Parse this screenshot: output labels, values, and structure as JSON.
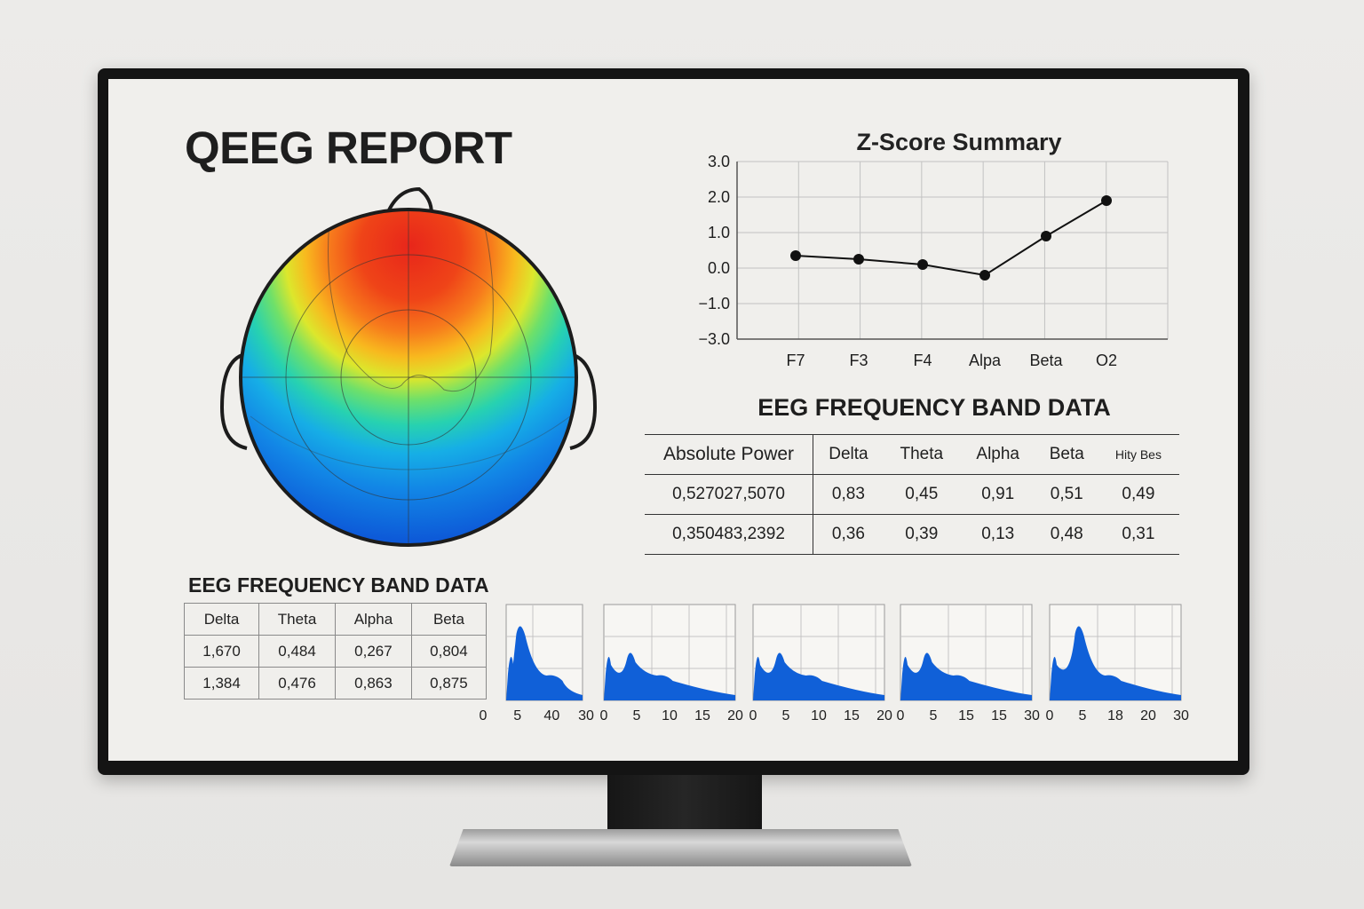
{
  "report": {
    "title": "QEEG REPORT"
  },
  "zscore": {
    "title": "Z-Score Summary",
    "y_ticks": [
      "3.0",
      "2.0",
      "1.0",
      "0.0",
      "−1.0",
      "−3.0"
    ],
    "x_ticks": [
      "F7",
      "F3",
      "F4",
      "Alpa",
      "Beta",
      "O2"
    ]
  },
  "chart_data": [
    {
      "type": "line",
      "title": "Z-Score Summary",
      "categories": [
        "F7",
        "F3",
        "F4",
        "Alpa",
        "Beta",
        "O2"
      ],
      "values": [
        0.35,
        0.25,
        0.1,
        -0.2,
        0.9,
        1.9
      ],
      "y_ticks": [
        3.0,
        2.0,
        1.0,
        0.0,
        -1.0,
        -3.0
      ],
      "ylim": [
        -3.0,
        3.0
      ],
      "grid": true,
      "marker_color": "#111111"
    },
    {
      "type": "area",
      "x_ticks": [
        "0",
        "5",
        "40",
        "30"
      ],
      "peak_x": 5,
      "grid": true,
      "color": "#1060d8"
    },
    {
      "type": "area",
      "x_ticks": [
        "0",
        "5",
        "10",
        "15",
        "20"
      ],
      "peak_x": 5,
      "grid": true,
      "color": "#1060d8"
    },
    {
      "type": "area",
      "x_ticks": [
        "0",
        "5",
        "10",
        "15",
        "20"
      ],
      "peak_x": 5,
      "grid": true,
      "color": "#1060d8"
    },
    {
      "type": "area",
      "x_ticks": [
        "0",
        "5",
        "15",
        "15",
        "30"
      ],
      "peak_x": 5,
      "grid": true,
      "color": "#1060d8"
    },
    {
      "type": "area",
      "x_ticks": [
        "0",
        "5",
        "18",
        "20",
        "30"
      ],
      "peak_x": 5,
      "grid": true,
      "color": "#1060d8"
    }
  ],
  "abs_table": {
    "title": "EEG FREQUENCY BAND DATA",
    "headers": [
      "Absolute Power",
      "Delta",
      "Theta",
      "Alpha",
      "Beta",
      "Hity Bes"
    ],
    "rows": [
      [
        "0,527027,5070",
        "0,83",
        "0,45",
        "0,91",
        "0,51",
        "0,49"
      ],
      [
        "0,350483,2392",
        "0,36",
        "0,39",
        "0,13",
        "0,48",
        "0,31"
      ]
    ]
  },
  "freq_table": {
    "title": "EEG FREQUENCY BAND DATA",
    "headers": [
      "Delta",
      "Theta",
      "Alpha",
      "Beta"
    ],
    "rows": [
      [
        "1,670",
        "0,484",
        "0,267",
        "0,804"
      ],
      [
        "1,384",
        "0,476",
        "0,863",
        "0,875"
      ]
    ]
  },
  "spectra": [
    {
      "ticks": [
        "0",
        "5",
        "40",
        "30"
      ]
    },
    {
      "ticks": [
        "0",
        "5",
        "10",
        "15",
        "20"
      ]
    },
    {
      "ticks": [
        "0",
        "5",
        "10",
        "15",
        "20"
      ]
    },
    {
      "ticks": [
        "0",
        "5",
        "15",
        "15",
        "30"
      ]
    },
    {
      "ticks": [
        "0",
        "5",
        "18",
        "20",
        "30"
      ]
    }
  ],
  "colors": {
    "bezel": "#141414",
    "screen": "#f0efec",
    "spectrum_fill": "#1060d8",
    "topomap_low": "#0a3fd0",
    "topomap_high": "#e8261a"
  },
  "icons": {
    "headmap": "scalp-topography-map"
  }
}
